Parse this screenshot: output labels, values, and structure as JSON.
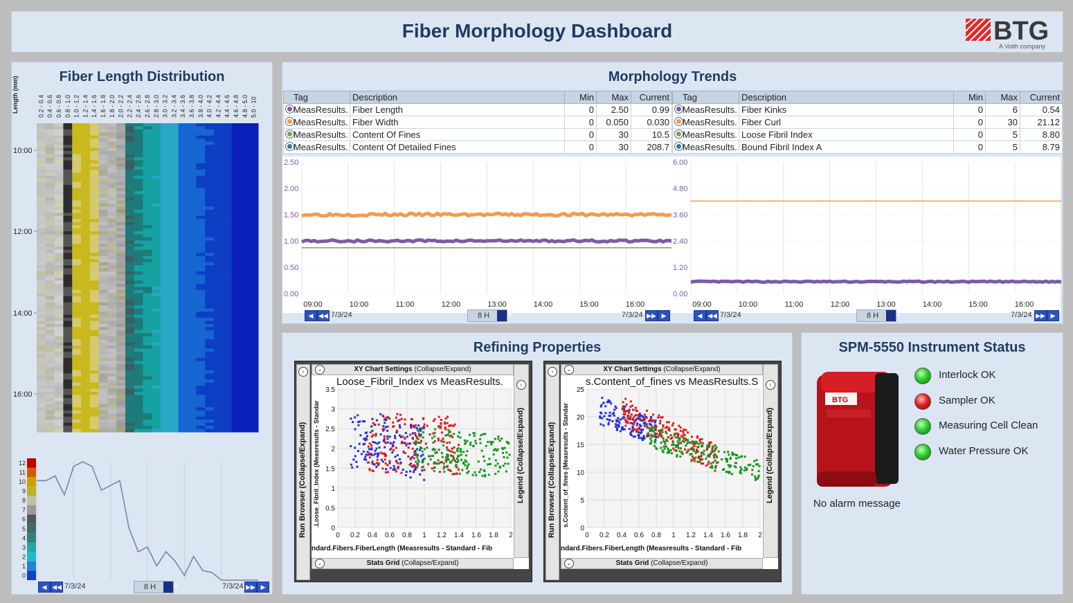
{
  "header": {
    "title": "Fiber Morphology Dashboard",
    "logo_text": "BTG",
    "logo_sub": "A Voith company"
  },
  "colors": {
    "purple": "#7d5ba6",
    "orange": "#f59a4c",
    "green": "#6aa84f",
    "teal": "#2e7d96",
    "heat_high": "#0a1fb8",
    "line": "#6d89ad"
  },
  "fld": {
    "title": "Fiber Length Distribution",
    "ylabel": "Length (mm)",
    "bins": [
      "0.2 - 0.4",
      "0.4 - 0.6",
      "0.6 - 0.8",
      "0.8 - 1.0",
      "1.0 - 1.2",
      "1.2 - 1.4",
      "1.4 - 1.6",
      "1.6 - 1.8",
      "1.8 - 2.0",
      "2.0 - 2.2",
      "2.2 - 2.4",
      "2.4 - 2.6",
      "2.6 - 2.8",
      "2.8 - 3.0",
      "3.0 - 3.2",
      "3.2 - 3.4",
      "3.4 - 3.6",
      "3.6 - 3.8",
      "3.8 - 4.0",
      "4.0 - 4.2",
      "4.2 - 4.4",
      "4.4 - 4.6",
      "4.6 - 4.8",
      "4.8 - 5.0",
      "5.0 - 10"
    ],
    "times": [
      "10:00",
      "12:00",
      "14:00",
      "16:00"
    ],
    "scale": [
      "12",
      "11",
      "10",
      "9",
      "8",
      "7",
      "6",
      "5",
      "4",
      "3",
      "2",
      "1",
      "0"
    ],
    "trend_values": [
      10,
      10,
      10.5,
      8.5,
      11.5,
      12,
      11.5,
      9,
      9.5,
      10,
      5,
      2.5,
      3,
      1,
      2.5,
      1.5,
      0,
      2,
      0.5,
      0.3,
      -0.5,
      -0.5,
      -0.5,
      -0.5,
      -0.5
    ],
    "nav": {
      "date_left": "7/3/24",
      "range": "8 H",
      "date_right": "7/3/24"
    }
  },
  "trends": {
    "title": "Morphology Trends",
    "headers": {
      "tag": "Tag",
      "desc": "Description",
      "min": "Min",
      "max": "Max",
      "current": "Current"
    },
    "left_rows": [
      {
        "tag": "MeasResults.",
        "desc": "Fiber Length",
        "min": "0",
        "max": "2.50",
        "current": "0.99",
        "color": "#7d5ba6"
      },
      {
        "tag": "MeasResults.",
        "desc": "Fiber Width",
        "min": "0",
        "max": "0.050",
        "current": "0.030",
        "color": "#f59a4c"
      },
      {
        "tag": "MeasResults.",
        "desc": "Content Of Fines",
        "min": "0",
        "max": "30",
        "current": "10.5",
        "color": "#6aa84f"
      },
      {
        "tag": "MeasResults.",
        "desc": "Content Of Detailed Fines",
        "min": "0",
        "max": "30",
        "current": "208.7",
        "color": "#2e7d96"
      }
    ],
    "right_rows": [
      {
        "tag": "MeasResults.",
        "desc": "Fiber Kinks",
        "min": "0",
        "max": "6",
        "current": "0.54",
        "color": "#7d5ba6"
      },
      {
        "tag": "MeasResults.",
        "desc": "Fiber Curl",
        "min": "0",
        "max": "30",
        "current": "21.12",
        "color": "#f59a4c"
      },
      {
        "tag": "MeasResults.",
        "desc": "Loose Fibril Index",
        "min": "0",
        "max": "5",
        "current": "8.80",
        "color": "#6aa84f"
      },
      {
        "tag": "MeasResults.",
        "desc": "Bound Fibril Index A",
        "min": "0",
        "max": "5",
        "current": "8.79",
        "color": "#2e7d96"
      }
    ],
    "left_yticks": [
      "2.50",
      "2.00",
      "1.50",
      "1.00",
      "0.50",
      "0.00"
    ],
    "right_yticks": [
      "6.00",
      "4.80",
      "3.60",
      "2.40",
      "1.20",
      "0.00"
    ],
    "xticks": [
      "09:00",
      "10:00",
      "11:00",
      "12:00",
      "13:00",
      "14:00",
      "15:00",
      "16:00"
    ],
    "nav": {
      "date_left": "7/3/24",
      "range": "8 H",
      "date_right": "7/3/24"
    }
  },
  "chart_data": [
    {
      "type": "line",
      "title": "Morphology Trends (left)",
      "ylim": [
        0,
        2.5
      ],
      "x": [
        "09:00",
        "10:00",
        "11:00",
        "12:00",
        "13:00",
        "14:00",
        "15:00",
        "16:00"
      ],
      "series": [
        {
          "name": "Fiber Length",
          "values": [
            1.0,
            1.0,
            1.0,
            1.0,
            1.0,
            1.0,
            1.0,
            1.0
          ]
        },
        {
          "name": "Fiber Width",
          "values": [
            1.5,
            1.5,
            1.5,
            1.5,
            1.5,
            1.5,
            1.5,
            1.5
          ]
        },
        {
          "name": "Content Of Fines",
          "values": [
            0.9,
            0.9,
            0.9,
            0.9,
            0.9,
            0.9,
            0.9,
            0.9
          ]
        }
      ]
    },
    {
      "type": "line",
      "title": "Morphology Trends (right)",
      "ylim": [
        0,
        6
      ],
      "x": [
        "09:00",
        "10:00",
        "11:00",
        "12:00",
        "13:00",
        "14:00",
        "15:00",
        "16:00"
      ],
      "series": [
        {
          "name": "Fiber Curl",
          "values": [
            4.2,
            4.2,
            4.2,
            4.2,
            4.2,
            4.2,
            4.2,
            4.2
          ]
        },
        {
          "name": "Fiber Kinks",
          "values": [
            0.5,
            0.5,
            0.5,
            0.5,
            0.5,
            0.5,
            0.5,
            0.5
          ]
        }
      ]
    },
    {
      "type": "scatter",
      "title": "Loose_Fibril_Index vs MeasResults",
      "xlabel": "ndard.Fibers.FiberLength (Measresults - Standard - Fib",
      "ylabel": ".Loose_Fibril_Index (Measresults - Standar",
      "xlim": [
        0,
        2
      ],
      "ylim": [
        0,
        3.5
      ]
    },
    {
      "type": "scatter",
      "title": "s.Content_of_fines vs MeasResults.",
      "xlabel": "ndard.Fibers.FiberLength (Measresults - Standard - Fib",
      "ylabel": "s.Content_of_fines (Measresults - Standar",
      "xlim": [
        0,
        2
      ],
      "ylim": [
        0,
        25
      ]
    }
  ],
  "refining": {
    "title": "Refining Properties",
    "settings": "XY Chart Settings",
    "collapse": "(Collapse/Expand)",
    "stats": "Stats Grid",
    "run_browser": "Run Browser (Collapse/Expand)",
    "legend": "Legend (Collapse/Expand)",
    "chart1": {
      "title": "Loose_Fibril_Index vs MeasResults.",
      "xlabel": "ndard.Fibers.FiberLength (Measresults - Standard - Fib",
      "ylabel": ".Loose_Fibril_Index (Measresults - Standar",
      "xticks": [
        "0",
        "0.2",
        "0.4",
        "0.6",
        "0.8",
        "1",
        "1.2",
        "1.4",
        "1.6",
        "1.8",
        "2"
      ],
      "yticks": [
        "3.5",
        "3",
        "2.5",
        "2",
        "1.5",
        "1",
        "0.5",
        "0"
      ]
    },
    "chart2": {
      "title": "s.Content_of_fines vs MeasResults.S",
      "xlabel": "ndard.Fibers.FiberLength (Measresults - Standard - Fib",
      "ylabel": "s.Content_of_fines (Measresults - Standar",
      "xticks": [
        "0",
        "0.2",
        "0.4",
        "0.6",
        "0.8",
        "1",
        "1.2",
        "1.4",
        "1.6",
        "1.8",
        "2"
      ],
      "yticks": [
        "25",
        "20",
        "15",
        "10",
        "5",
        "0"
      ]
    }
  },
  "status": {
    "title": "SPM-5550 Instrument Status",
    "items": [
      {
        "label": "Interlock OK",
        "state": "ok"
      },
      {
        "label": "Sampler OK",
        "state": "fail"
      },
      {
        "label": "Measuring Cell Clean",
        "state": "ok"
      },
      {
        "label": "Water Pressure OK",
        "state": "ok"
      }
    ],
    "alarm": "No alarm message",
    "device_brand": "BTG"
  }
}
